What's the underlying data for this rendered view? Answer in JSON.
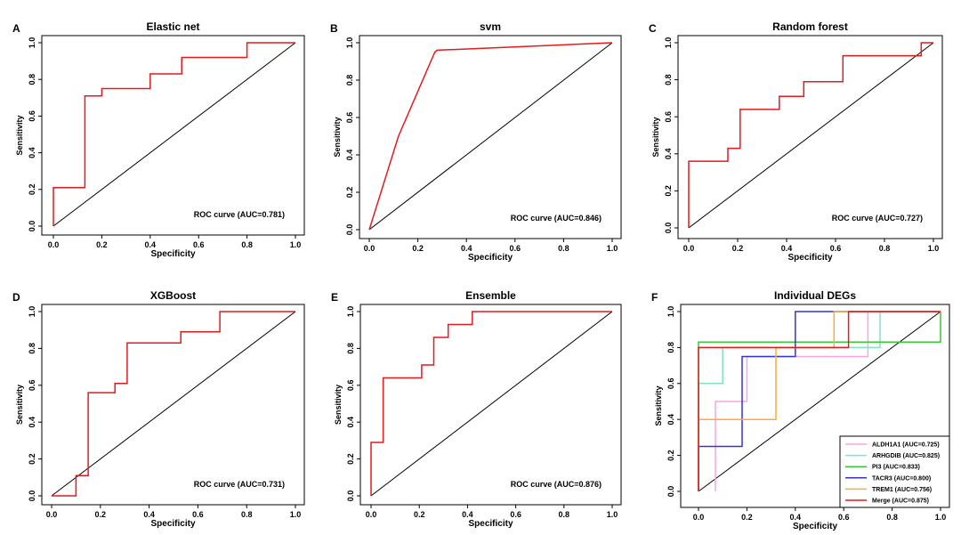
{
  "figure": {
    "axis_ticks": [
      "0.0",
      "0.2",
      "0.4",
      "0.6",
      "0.8",
      "1.0"
    ],
    "roc_color": "#e41a1c",
    "diagonal_color": "#000000"
  },
  "chart_data": [
    {
      "id": "A",
      "panel_letter": "A",
      "type": "line",
      "title": "Elastic net",
      "xlabel": "Specificity",
      "ylabel": "Sensitivity",
      "xlim": [
        0,
        1
      ],
      "ylim": [
        0,
        1
      ],
      "grid": false,
      "legend": "none",
      "annotation": "ROC curve (AUC=0.781)",
      "series": [
        {
          "color": "#e41a1c",
          "x": [
            0,
            0,
            0.13,
            0.13,
            0.2,
            0.2,
            0.4,
            0.4,
            0.53,
            0.53,
            0.8,
            0.8,
            1.0
          ],
          "y": [
            0,
            0.21,
            0.21,
            0.71,
            0.71,
            0.75,
            0.75,
            0.83,
            0.83,
            0.92,
            0.92,
            1.0,
            1.0
          ]
        }
      ]
    },
    {
      "id": "B",
      "panel_letter": "B",
      "type": "line",
      "title": "svm",
      "xlabel": "Specificity",
      "ylabel": "Sensitivity",
      "xlim": [
        0,
        1
      ],
      "ylim": [
        0,
        1
      ],
      "grid": false,
      "legend": "none",
      "annotation": "ROC curve (AUC=0.846)",
      "series": [
        {
          "color": "#e41a1c",
          "x": [
            0,
            0.12,
            0.27,
            0.28,
            1.0
          ],
          "y": [
            0,
            0.5,
            0.95,
            0.96,
            1.0
          ]
        }
      ]
    },
    {
      "id": "C",
      "panel_letter": "C",
      "type": "line",
      "title": "Random forest",
      "xlabel": "Specificity",
      "ylabel": "Sensitivity",
      "xlim": [
        0,
        1
      ],
      "ylim": [
        0,
        1
      ],
      "grid": false,
      "legend": "none",
      "annotation": "ROC curve (AUC=0.727)",
      "series": [
        {
          "color": "#e41a1c",
          "x": [
            0,
            0,
            0.16,
            0.16,
            0.21,
            0.21,
            0.37,
            0.37,
            0.47,
            0.47,
            0.63,
            0.63,
            0.95,
            0.95,
            1.0
          ],
          "y": [
            0,
            0.36,
            0.36,
            0.43,
            0.43,
            0.64,
            0.64,
            0.71,
            0.71,
            0.79,
            0.79,
            0.93,
            0.93,
            1.0,
            1.0
          ]
        }
      ]
    },
    {
      "id": "D",
      "panel_letter": "D",
      "type": "line",
      "title": "XGBoost",
      "xlabel": "Specificity",
      "ylabel": "Sensitivity",
      "xlim": [
        0,
        1
      ],
      "ylim": [
        0,
        1
      ],
      "grid": false,
      "legend": "none",
      "annotation": "ROC curve (AUC=0.731)",
      "series": [
        {
          "color": "#e41a1c",
          "x": [
            0,
            0.1,
            0.1,
            0.15,
            0.15,
            0.26,
            0.26,
            0.31,
            0.31,
            0.53,
            0.53,
            0.69,
            0.69,
            1.0
          ],
          "y": [
            0,
            0,
            0.11,
            0.11,
            0.56,
            0.56,
            0.61,
            0.61,
            0.83,
            0.83,
            0.89,
            0.89,
            1.0,
            1.0
          ]
        }
      ]
    },
    {
      "id": "E",
      "panel_letter": "E",
      "type": "line",
      "title": "Ensemble",
      "xlabel": "Specificity",
      "ylabel": "Sensitivity",
      "xlim": [
        0,
        1
      ],
      "ylim": [
        0,
        1
      ],
      "grid": false,
      "legend": "none",
      "annotation": "ROC curve (AUC=0.876)",
      "series": [
        {
          "color": "#e41a1c",
          "x": [
            0,
            0,
            0.05,
            0.05,
            0.21,
            0.21,
            0.26,
            0.26,
            0.32,
            0.32,
            0.42,
            0.42,
            1.0
          ],
          "y": [
            0,
            0.29,
            0.29,
            0.64,
            0.64,
            0.71,
            0.71,
            0.86,
            0.86,
            0.93,
            0.93,
            1.0,
            1.0
          ]
        }
      ]
    },
    {
      "id": "F",
      "panel_letter": "F",
      "type": "line",
      "title": "Individual DEGs",
      "xlabel": "Specificity",
      "ylabel": "Sensitivity",
      "xlim": [
        -0.05,
        1.05
      ],
      "ylim": [
        -0.05,
        1.05
      ],
      "grid": false,
      "legend": "bottom-right",
      "series": [
        {
          "name": "ALDH1A1 (AUC=0.725)",
          "color": "#f4a6e6",
          "x": [
            0.07,
            0.07,
            0.2,
            0.2,
            0.7,
            0.7,
            1.0
          ],
          "y": [
            0,
            0.5,
            0.5,
            0.75,
            0.75,
            1.0,
            1.0
          ]
        },
        {
          "name": "ARHGDIB (AUC=0.825)",
          "color": "#7fe3c4",
          "x": [
            0,
            0,
            0.1,
            0.1,
            0.75,
            0.75,
            1.0
          ],
          "y": [
            0,
            0.6,
            0.6,
            0.8,
            0.8,
            1.0,
            1.0
          ]
        },
        {
          "name": "PI3 (AUC=0.833)",
          "color": "#33cc33",
          "x": [
            0,
            0,
            1.0,
            1.0
          ],
          "y": [
            0,
            0.83,
            0.83,
            1.0
          ]
        },
        {
          "name": "TACR3  (AUC=0.800)",
          "color": "#3333dd",
          "x": [
            0,
            0,
            0.18,
            0.18,
            0.4,
            0.4,
            1.0
          ],
          "y": [
            0,
            0.25,
            0.25,
            0.75,
            0.75,
            1.0,
            1.0
          ]
        },
        {
          "name": "TREM1 (AUC=0.756)",
          "color": "#ffaa33",
          "x": [
            0,
            0,
            0.32,
            0.32,
            0.56,
            0.56,
            1.0
          ],
          "y": [
            0,
            0.4,
            0.4,
            0.8,
            0.8,
            1.0,
            1.0
          ]
        },
        {
          "name": "Merge (AUC=0.875)",
          "color": "#e41a1c",
          "x": [
            0,
            0,
            0.62,
            0.62,
            1.0
          ],
          "y": [
            0,
            0.8,
            0.8,
            1.0,
            1.0
          ]
        }
      ]
    }
  ]
}
